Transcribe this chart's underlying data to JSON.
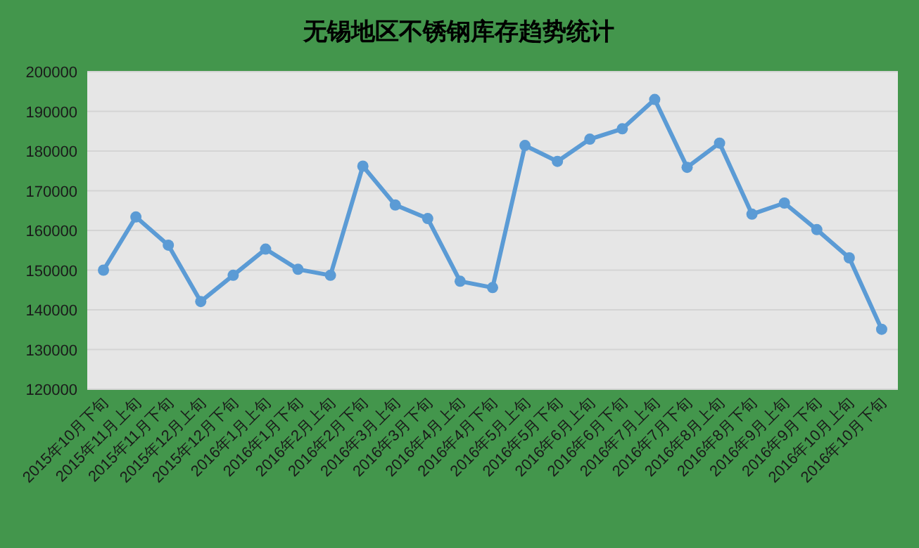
{
  "chart_data": {
    "type": "line",
    "title": "无锡地区不锈钢库存趋势统计",
    "categories": [
      "2015年10月下旬",
      "2015年11月上旬",
      "2015年11月下旬",
      "2015年12月上旬",
      "2015年12月下旬",
      "2016年1月上旬",
      "2016年1月下旬",
      "2016年2月上旬",
      "2016年2月下旬",
      "2016年3月上旬",
      "2016年3月下旬",
      "2016年4月上旬",
      "2016年4月下旬",
      "2016年5月上旬",
      "2016年5月下旬",
      "2016年6月上旬",
      "2016年6月下旬",
      "2016年7月上旬",
      "2016年7月下旬",
      "2016年8月上旬",
      "2016年8月下旬",
      "2016年9月上旬",
      "2016年9月下旬",
      "2016年10月上旬",
      "2016年10月下旬"
    ],
    "series": [
      {
        "color": "#5b9bd5",
        "values": [
          150000,
          163400,
          156300,
          142100,
          148700,
          155300,
          150200,
          148700,
          176200,
          166400,
          163000,
          147200,
          145600,
          181400,
          177400,
          183000,
          185600,
          193000,
          175900,
          182000,
          164100,
          166900,
          160200,
          153100,
          135100
        ]
      }
    ],
    "ylim": [
      120000,
      200000
    ],
    "yticks": [
      120000,
      130000,
      140000,
      150000,
      160000,
      170000,
      180000,
      190000,
      200000
    ],
    "grid": "y",
    "marker": "circle",
    "line_style": "solid"
  }
}
